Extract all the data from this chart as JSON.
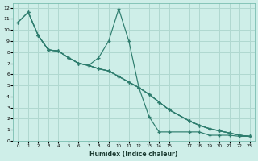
{
  "xlabel": "Humidex (Indice chaleur)",
  "bg_color": "#ceeee8",
  "grid_color": "#b0d8d0",
  "line_color": "#2e7d6e",
  "xlim": [
    -0.5,
    23.5
  ],
  "ylim": [
    0,
    12.4
  ],
  "xticks": [
    0,
    1,
    2,
    3,
    4,
    5,
    6,
    7,
    8,
    9,
    10,
    11,
    12,
    13,
    14,
    15,
    17,
    18,
    19,
    20,
    21,
    22,
    23
  ],
  "yticks": [
    0,
    1,
    2,
    3,
    4,
    5,
    6,
    7,
    8,
    9,
    10,
    11,
    12
  ],
  "line1_x": [
    0,
    1,
    2,
    3,
    4,
    5,
    6,
    7,
    8,
    9,
    10,
    11,
    12,
    13,
    14,
    15,
    17,
    18,
    19,
    20,
    21,
    22,
    23
  ],
  "line1_y": [
    10.7,
    11.6,
    9.5,
    8.2,
    8.1,
    7.5,
    7.0,
    6.8,
    6.5,
    6.3,
    5.8,
    5.3,
    4.8,
    4.2,
    3.5,
    2.8,
    1.8,
    1.4,
    1.1,
    0.9,
    0.7,
    0.5,
    0.4
  ],
  "line2_x": [
    1,
    2,
    3,
    4,
    5,
    6,
    7,
    8,
    9,
    10,
    11,
    12,
    13,
    14,
    15,
    17,
    18,
    19,
    20,
    21,
    22,
    23
  ],
  "line2_y": [
    11.6,
    9.5,
    8.2,
    8.1,
    7.5,
    7.0,
    6.8,
    6.5,
    6.3,
    5.8,
    5.3,
    4.8,
    4.2,
    3.5,
    2.8,
    1.8,
    1.4,
    1.1,
    0.9,
    0.7,
    0.5,
    0.4
  ],
  "line3_x": [
    0,
    1,
    2,
    3,
    4,
    5,
    6,
    7,
    8,
    9,
    10,
    11,
    12,
    13,
    14,
    15,
    17,
    18,
    19,
    20,
    21,
    22,
    23
  ],
  "line3_y": [
    10.7,
    11.6,
    9.5,
    8.2,
    8.1,
    7.5,
    7.0,
    6.8,
    7.5,
    9.0,
    11.9,
    9.0,
    4.8,
    2.2,
    0.8,
    0.8,
    0.8,
    0.8,
    0.5,
    0.5,
    0.5,
    0.4,
    0.4
  ],
  "line4_x": [
    2,
    3,
    4,
    5,
    6,
    7,
    8,
    9,
    10,
    11,
    12,
    13,
    14,
    15,
    17,
    18,
    19,
    20,
    21,
    22,
    23
  ],
  "line4_y": [
    9.5,
    8.2,
    8.1,
    7.5,
    7.0,
    6.8,
    6.5,
    6.3,
    5.8,
    5.3,
    4.8,
    4.2,
    3.5,
    2.8,
    1.8,
    1.4,
    1.1,
    0.9,
    0.7,
    0.5,
    0.4
  ]
}
